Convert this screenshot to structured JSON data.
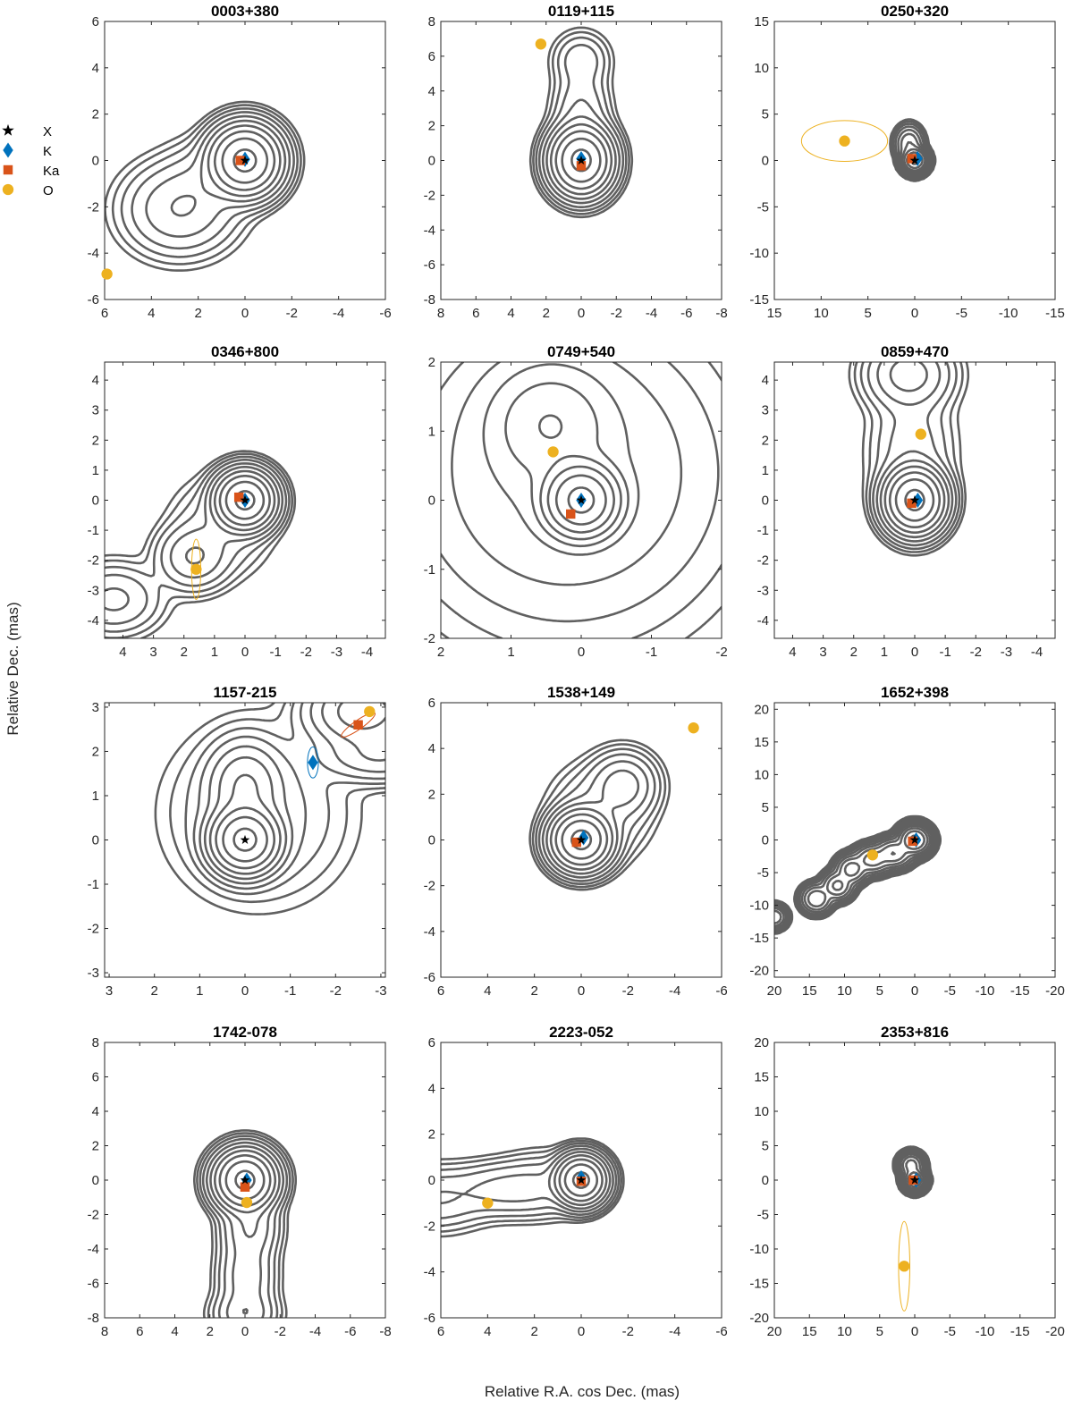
{
  "figure": {
    "xlabel": "Relative R.A. cos Dec. (mas)",
    "ylabel": "Relative Dec. (mas)"
  },
  "colors": {
    "X": "#000000",
    "K": "#0072BD",
    "Ka": "#D95319",
    "O": "#EDB120",
    "contour": "#606060"
  },
  "legend": [
    {
      "key": "X",
      "label": "X",
      "marker": "star"
    },
    {
      "key": "K",
      "label": "K",
      "marker": "diamond"
    },
    {
      "key": "Ka",
      "label": "Ka",
      "marker": "square"
    },
    {
      "key": "O",
      "label": "O",
      "marker": "circle"
    }
  ],
  "chart_data": [
    {
      "type": "scatter",
      "title": "0003+380",
      "xlim": [
        6,
        -6
      ],
      "ylim": [
        -6,
        6
      ],
      "xticks": [
        6,
        4,
        2,
        0,
        -2,
        -4,
        -6
      ],
      "xticklabels": [
        "6",
        "4",
        "2",
        "0",
        "-2",
        "-4",
        "-6"
      ],
      "yticks": [
        -6,
        -4,
        -2,
        0,
        2,
        4,
        6
      ],
      "yticklabels": [
        "-6",
        "-4",
        "-2",
        "0",
        "2",
        "4",
        "6"
      ],
      "points": [
        {
          "band": "X",
          "x": 0.0,
          "y": 0.0
        },
        {
          "band": "K",
          "x": 0.0,
          "y": 0.05
        },
        {
          "band": "Ka",
          "x": 0.2,
          "y": 0.0
        },
        {
          "band": "O",
          "x": 5.9,
          "y": -4.9
        }
      ],
      "ellipses": [],
      "components": [
        {
          "x": 0,
          "y": 0,
          "sx": 0.7,
          "sy": 0.7,
          "amp": 1.0
        },
        {
          "x": 2.8,
          "y": -2.1,
          "sx": 1.2,
          "sy": 1.0,
          "amp": 0.05
        },
        {
          "x": 1.5,
          "y": -0.8,
          "sx": 1.0,
          "sy": 0.9,
          "amp": 0.02
        }
      ]
    },
    {
      "type": "scatter",
      "title": "0119+115",
      "xlim": [
        8,
        -8
      ],
      "ylim": [
        -8,
        8
      ],
      "xticks": [
        8,
        6,
        4,
        2,
        0,
        -2,
        -4,
        -6,
        -8
      ],
      "xticklabels": [
        "8",
        "6",
        "4",
        "2",
        "0",
        "-2",
        "-4",
        "-6",
        "-8"
      ],
      "yticks": [
        -8,
        -6,
        -4,
        -2,
        0,
        2,
        4,
        6,
        8
      ],
      "yticklabels": [
        "-8",
        "-6",
        "-4",
        "-2",
        "0",
        "2",
        "4",
        "6",
        "8"
      ],
      "points": [
        {
          "band": "X",
          "x": 0.0,
          "y": 0.0
        },
        {
          "band": "K",
          "x": 0.0,
          "y": 0.1
        },
        {
          "band": "Ka",
          "x": 0.0,
          "y": -0.3
        },
        {
          "band": "O",
          "x": 2.3,
          "y": 6.7
        }
      ],
      "ellipses": [],
      "components": [
        {
          "x": 0,
          "y": 0,
          "sx": 0.8,
          "sy": 0.9,
          "amp": 1.0
        },
        {
          "x": 0,
          "y": 2.5,
          "sx": 0.8,
          "sy": 1.5,
          "amp": 0.03
        },
        {
          "x": 0,
          "y": 5.8,
          "sx": 0.8,
          "sy": 0.8,
          "amp": 0.02
        }
      ]
    },
    {
      "type": "scatter",
      "title": "0250+320",
      "xlim": [
        15,
        -15
      ],
      "ylim": [
        -15,
        15
      ],
      "xticks": [
        15,
        10,
        5,
        0,
        -5,
        -10,
        -15
      ],
      "xticklabels": [
        "15",
        "10",
        "5",
        "0",
        "-5",
        "-10",
        "-15"
      ],
      "yticks": [
        -15,
        -10,
        -5,
        0,
        5,
        10,
        15
      ],
      "yticklabels": [
        "-15",
        "-10",
        "-5",
        "0",
        "5",
        "10",
        "15"
      ],
      "points": [
        {
          "band": "X",
          "x": 0.0,
          "y": 0.0
        },
        {
          "band": "K",
          "x": -0.3,
          "y": 0.2
        },
        {
          "band": "Ka",
          "x": 0.3,
          "y": 0.2
        },
        {
          "band": "O",
          "x": 7.5,
          "y": 2.1
        }
      ],
      "ellipses": [
        {
          "band": "O",
          "x": 7.5,
          "y": 2.1,
          "rx": 4.6,
          "ry": 2.2,
          "angle": 0
        }
      ],
      "components": [
        {
          "x": 0,
          "y": 0,
          "sx": 0.6,
          "sy": 0.6,
          "amp": 1.0
        },
        {
          "x": 0.6,
          "y": 1.8,
          "sx": 0.7,
          "sy": 0.9,
          "amp": 0.1
        }
      ]
    },
    {
      "type": "scatter",
      "title": "0346+800",
      "xlim": [
        4.6,
        -4.6
      ],
      "ylim": [
        -4.6,
        4.6
      ],
      "xticks": [
        4,
        3,
        2,
        1,
        0,
        -1,
        -2,
        -3,
        -4
      ],
      "xticklabels": [
        "4",
        "3",
        "2",
        "1",
        "0",
        "-1",
        "-2",
        "-3",
        "-4"
      ],
      "yticks": [
        -4,
        -3,
        -2,
        -1,
        0,
        1,
        2,
        3,
        4
      ],
      "yticklabels": [
        "-4",
        "-3",
        "-2",
        "-1",
        "0",
        "1",
        "2",
        "3",
        "4"
      ],
      "points": [
        {
          "band": "X",
          "x": 0.0,
          "y": 0.0
        },
        {
          "band": "K",
          "x": 0.0,
          "y": 0.0
        },
        {
          "band": "Ka",
          "x": 0.2,
          "y": 0.1
        },
        {
          "band": "O",
          "x": 1.6,
          "y": -2.3
        }
      ],
      "ellipses": [
        {
          "band": "O",
          "x": 1.6,
          "y": -2.3,
          "rx": 0.15,
          "ry": 1.0,
          "angle": 0
        }
      ],
      "components": [
        {
          "x": 0,
          "y": 0,
          "sx": 0.45,
          "sy": 0.45,
          "amp": 1.0
        },
        {
          "x": 1.7,
          "y": -1.9,
          "sx": 0.6,
          "sy": 0.55,
          "amp": 0.05
        },
        {
          "x": 4.3,
          "y": -3.3,
          "sx": 0.8,
          "sy": 0.6,
          "amp": 0.03
        },
        {
          "x": 0.8,
          "y": -0.9,
          "sx": 0.8,
          "sy": 0.8,
          "amp": 0.02
        }
      ]
    },
    {
      "type": "scatter",
      "title": "0749+540",
      "xlim": [
        2,
        -2
      ],
      "ylim": [
        -2,
        2
      ],
      "xticks": [
        2,
        1,
        0,
        -1,
        -2
      ],
      "xticklabels": [
        "2",
        "1",
        "0",
        "-1",
        "-2"
      ],
      "yticks": [
        -2,
        -1,
        0,
        1,
        2
      ],
      "yticklabels": [
        "-2",
        "-1",
        "0",
        "1",
        "2"
      ],
      "points": [
        {
          "band": "X",
          "x": 0.0,
          "y": 0.0
        },
        {
          "band": "K",
          "x": 0.0,
          "y": 0.0
        },
        {
          "band": "Ka",
          "x": 0.15,
          "y": -0.2
        },
        {
          "band": "O",
          "x": 0.4,
          "y": 0.7
        }
      ],
      "ellipses": [],
      "components": [
        {
          "x": 0,
          "y": 0,
          "sx": 0.25,
          "sy": 0.25,
          "amp": 1.0
        },
        {
          "x": 0.45,
          "y": 1.1,
          "sx": 0.45,
          "sy": 0.45,
          "amp": 0.08
        },
        {
          "x": 0.2,
          "y": 0.4,
          "sx": 1.2,
          "sy": 1.2,
          "amp": 0.03
        }
      ]
    },
    {
      "type": "scatter",
      "title": "0859+470",
      "xlim": [
        4.6,
        -4.6
      ],
      "ylim": [
        -4.6,
        4.6
      ],
      "xticks": [
        4,
        3,
        2,
        1,
        0,
        -1,
        -2,
        -3,
        -4
      ],
      "xticklabels": [
        "4",
        "3",
        "2",
        "1",
        "0",
        "-1",
        "-2",
        "-3",
        "-4"
      ],
      "yticks": [
        -4,
        -3,
        -2,
        -1,
        0,
        1,
        2,
        3,
        4
      ],
      "yticklabels": [
        "-4",
        "-3",
        "-2",
        "-1",
        "0",
        "1",
        "2",
        "3",
        "4"
      ],
      "points": [
        {
          "band": "X",
          "x": 0.0,
          "y": 0.0
        },
        {
          "band": "K",
          "x": -0.1,
          "y": 0.0
        },
        {
          "band": "Ka",
          "x": 0.1,
          "y": -0.1
        },
        {
          "band": "O",
          "x": -0.2,
          "y": 2.2
        }
      ],
      "ellipses": [],
      "components": [
        {
          "x": 0,
          "y": 0,
          "sx": 0.45,
          "sy": 0.5,
          "amp": 1.0
        },
        {
          "x": 0.2,
          "y": 4.2,
          "sx": 0.7,
          "sy": 0.6,
          "amp": 0.07
        },
        {
          "x": 0.1,
          "y": 1.6,
          "sx": 0.7,
          "sy": 1.2,
          "amp": 0.02
        }
      ]
    },
    {
      "type": "scatter",
      "title": "1157-215",
      "xlim": [
        3.1,
        -3.1
      ],
      "ylim": [
        -3.1,
        3.1
      ],
      "xticks": [
        3,
        2,
        1,
        0,
        -1,
        -2,
        -3
      ],
      "xticklabels": [
        "3",
        "2",
        "1",
        "0",
        "-1",
        "-2",
        "-3"
      ],
      "yticks": [
        -3,
        -2,
        -1,
        0,
        1,
        2,
        3
      ],
      "yticklabels": [
        "-3",
        "-2",
        "-1",
        "0",
        "1",
        "2",
        "3"
      ],
      "points": [
        {
          "band": "X",
          "x": 0.0,
          "y": 0.0
        },
        {
          "band": "K",
          "x": -1.5,
          "y": 1.75
        },
        {
          "band": "Ka",
          "x": -2.5,
          "y": 2.6
        },
        {
          "band": "O",
          "x": -2.75,
          "y": 2.9
        }
      ],
      "ellipses": [
        {
          "band": "K",
          "x": -1.5,
          "y": 1.75,
          "rx": 0.12,
          "ry": 0.35,
          "angle": 0
        },
        {
          "band": "Ka",
          "x": -2.5,
          "y": 2.6,
          "rx": 0.45,
          "ry": 0.1,
          "angle": -35
        }
      ],
      "components": [
        {
          "x": 0,
          "y": 0,
          "sx": 0.35,
          "sy": 0.35,
          "amp": 1.0
        },
        {
          "x": 0,
          "y": 1.2,
          "sx": 0.4,
          "sy": 0.5,
          "amp": 0.1
        },
        {
          "x": -2.6,
          "y": 2.9,
          "sx": 0.6,
          "sy": 0.4,
          "amp": 0.15
        },
        {
          "x": -3.0,
          "y": 1.9,
          "sx": 0.7,
          "sy": 0.3,
          "amp": 0.05
        },
        {
          "x": -0.3,
          "y": 0.6,
          "sx": 1.0,
          "sy": 1.0,
          "amp": 0.02
        }
      ]
    },
    {
      "type": "scatter",
      "title": "1538+149",
      "xlim": [
        6,
        -6
      ],
      "ylim": [
        -6,
        6
      ],
      "xticks": [
        6,
        4,
        2,
        0,
        -2,
        -4,
        -6
      ],
      "xticklabels": [
        "6",
        "4",
        "2",
        "0",
        "-2",
        "-4",
        "-6"
      ],
      "yticks": [
        -6,
        -4,
        -2,
        0,
        2,
        4,
        6
      ],
      "yticklabels": [
        "-6",
        "-4",
        "-2",
        "0",
        "2",
        "4",
        "6"
      ],
      "points": [
        {
          "band": "X",
          "x": 0.0,
          "y": 0.0
        },
        {
          "band": "K",
          "x": -0.1,
          "y": 0.1
        },
        {
          "band": "Ka",
          "x": 0.2,
          "y": -0.1
        },
        {
          "band": "O",
          "x": -4.8,
          "y": 4.9
        }
      ],
      "ellipses": [],
      "components": [
        {
          "x": 0,
          "y": 0,
          "sx": 0.6,
          "sy": 0.6,
          "amp": 1.0
        },
        {
          "x": -1.8,
          "y": 2.4,
          "sx": 0.7,
          "sy": 0.7,
          "amp": 0.07
        },
        {
          "x": -0.8,
          "y": 1.2,
          "sx": 1.0,
          "sy": 1.0,
          "amp": 0.03
        }
      ]
    },
    {
      "type": "scatter",
      "title": "1652+398",
      "xlim": [
        20,
        -20
      ],
      "ylim": [
        -21,
        21
      ],
      "xticks": [
        20,
        15,
        10,
        5,
        0,
        -5,
        -10,
        -15,
        -20
      ],
      "xticklabels": [
        "20",
        "15",
        "10",
        "5",
        "0",
        "-5",
        "-10",
        "-15",
        "-20"
      ],
      "yticks": [
        -20,
        -15,
        -10,
        -5,
        0,
        5,
        10,
        15,
        20
      ],
      "yticklabels": [
        "-20",
        "-15",
        "-10",
        "-5",
        "0",
        "5",
        "10",
        "15",
        "20"
      ],
      "points": [
        {
          "band": "X",
          "x": 0.0,
          "y": 0.0
        },
        {
          "band": "K",
          "x": -0.2,
          "y": 0.0
        },
        {
          "band": "Ka",
          "x": 0.3,
          "y": -0.2
        },
        {
          "band": "O",
          "x": 6.0,
          "y": -2.3
        }
      ],
      "ellipses": [],
      "components": [
        {
          "x": 0,
          "y": 0,
          "sx": 1.0,
          "sy": 1.0,
          "amp": 1.0
        },
        {
          "x": 3,
          "y": -2,
          "sx": 1.2,
          "sy": 1.0,
          "amp": 0.4
        },
        {
          "x": 6,
          "y": -3,
          "sx": 1.2,
          "sy": 1.0,
          "amp": 0.3
        },
        {
          "x": 9,
          "y": -4.5,
          "sx": 1.0,
          "sy": 1.0,
          "amp": 0.3
        },
        {
          "x": 11,
          "y": -7,
          "sx": 1.0,
          "sy": 1.0,
          "amp": 0.25
        },
        {
          "x": 14,
          "y": -9,
          "sx": 1.0,
          "sy": 1.0,
          "amp": 0.2
        },
        {
          "x": 20,
          "y": -11.8,
          "sx": 0.8,
          "sy": 0.8,
          "amp": 0.2
        }
      ]
    },
    {
      "type": "scatter",
      "title": "1742-078",
      "xlim": [
        8,
        -8
      ],
      "ylim": [
        -8,
        8
      ],
      "xticks": [
        8,
        6,
        4,
        2,
        0,
        -2,
        -4,
        -6,
        -8
      ],
      "xticklabels": [
        "8",
        "6",
        "4",
        "2",
        "0",
        "-2",
        "-4",
        "-6",
        "-8"
      ],
      "yticks": [
        -8,
        -6,
        -4,
        -2,
        0,
        2,
        4,
        6,
        8
      ],
      "yticklabels": [
        "-8",
        "-6",
        "-4",
        "-2",
        "0",
        "2",
        "4",
        "6",
        "8"
      ],
      "points": [
        {
          "band": "X",
          "x": 0.0,
          "y": 0.0
        },
        {
          "band": "K",
          "x": -0.1,
          "y": 0.0
        },
        {
          "band": "Ka",
          "x": 0.0,
          "y": -0.4
        },
        {
          "band": "O",
          "x": -0.1,
          "y": -1.3
        }
      ],
      "ellipses": [],
      "components": [
        {
          "x": 0,
          "y": 0,
          "sx": 0.8,
          "sy": 0.8,
          "amp": 1.0
        },
        {
          "x": -0.3,
          "y": -2.7,
          "sx": 0.8,
          "sy": 1.0,
          "amp": 0.05
        },
        {
          "x": -0.1,
          "y": -5.6,
          "sx": 0.8,
          "sy": 1.3,
          "amp": 0.04
        },
        {
          "x": 0.0,
          "y": -7.8,
          "sx": 0.9,
          "sy": 0.7,
          "amp": 0.04
        }
      ]
    },
    {
      "type": "scatter",
      "title": "2223-052",
      "xlim": [
        6,
        -6
      ],
      "ylim": [
        -6,
        6
      ],
      "xticks": [
        6,
        4,
        2,
        0,
        -2,
        -4,
        -6
      ],
      "xticklabels": [
        "6",
        "4",
        "2",
        "0",
        "-2",
        "-4",
        "-6"
      ],
      "yticks": [
        -6,
        -4,
        -2,
        0,
        2,
        4,
        6
      ],
      "yticklabels": [
        "-6",
        "-4",
        "-2",
        "0",
        "2",
        "4",
        "6"
      ],
      "points": [
        {
          "band": "X",
          "x": 0.0,
          "y": 0.0
        },
        {
          "band": "K",
          "x": 0.0,
          "y": 0.1
        },
        {
          "band": "Ka",
          "x": 0.0,
          "y": -0.05
        },
        {
          "band": "O",
          "x": 4.0,
          "y": -1.0
        }
      ],
      "ellipses": [],
      "components": [
        {
          "x": 0,
          "y": 0,
          "sx": 0.5,
          "sy": 0.5,
          "amp": 1.0
        },
        {
          "x": 3.3,
          "y": -0.4,
          "sx": 1.2,
          "sy": 0.6,
          "amp": 0.03
        },
        {
          "x": 6.2,
          "y": -0.8,
          "sx": 1.2,
          "sy": 0.7,
          "amp": 0.025
        },
        {
          "x": 1.6,
          "y": -0.2,
          "sx": 1.0,
          "sy": 0.7,
          "amp": 0.02
        }
      ]
    },
    {
      "type": "scatter",
      "title": "2353+816",
      "xlim": [
        20,
        -20
      ],
      "ylim": [
        -20,
        20
      ],
      "xticks": [
        20,
        15,
        10,
        5,
        0,
        -5,
        -10,
        -15,
        -20
      ],
      "xticklabels": [
        "20",
        "15",
        "10",
        "5",
        "0",
        "-5",
        "-10",
        "-15",
        "-20"
      ],
      "yticks": [
        -20,
        -15,
        -10,
        -5,
        0,
        5,
        10,
        15,
        20
      ],
      "yticklabels": [
        "-20",
        "-15",
        "-10",
        "-5",
        "0",
        "5",
        "10",
        "15",
        "20"
      ],
      "points": [
        {
          "band": "X",
          "x": 0.0,
          "y": 0.0
        },
        {
          "band": "K",
          "x": -0.2,
          "y": 0.0
        },
        {
          "band": "Ka",
          "x": 0.2,
          "y": 0.0
        },
        {
          "band": "O",
          "x": 1.5,
          "y": -12.5
        }
      ],
      "ellipses": [
        {
          "band": "O",
          "x": 1.5,
          "y": -12.5,
          "rx": 0.8,
          "ry": 6.5,
          "angle": 0
        }
      ],
      "components": [
        {
          "x": 0,
          "y": 0,
          "sx": 0.7,
          "sy": 0.7,
          "amp": 1.0
        },
        {
          "x": 0.5,
          "y": 2.2,
          "sx": 0.8,
          "sy": 0.8,
          "amp": 0.3
        }
      ]
    }
  ]
}
